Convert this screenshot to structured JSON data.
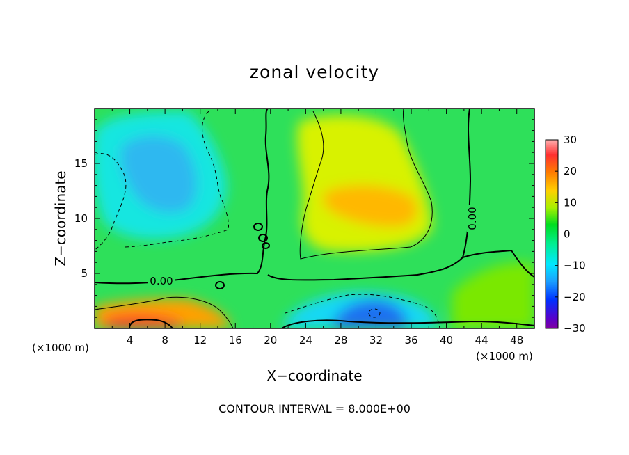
{
  "chart_data": {
    "type": "heatmap",
    "title": "zonal velocity",
    "xlabel": "X−coordinate",
    "ylabel": "Z−coordinate",
    "x_unit": "(×1000 m)",
    "z_unit": "(×1000 m)",
    "xlim": [
      0,
      50
    ],
    "ylim": [
      0,
      20
    ],
    "x_ticks": [
      4,
      8,
      12,
      16,
      20,
      24,
      28,
      32,
      36,
      40,
      44,
      48
    ],
    "y_ticks": [
      5,
      10,
      15
    ],
    "colorbar": {
      "range": [
        -30,
        30
      ],
      "ticks": [
        30,
        20,
        10,
        0,
        -10,
        -20,
        -30
      ],
      "tick_labels": [
        "30",
        "20",
        "10",
        "0",
        "−10",
        "−20",
        "−30"
      ]
    },
    "contour_labels": [
      "0.00",
      "0.00",
      "0.00"
    ],
    "contour_interval": "CONTOUR INTERVAL = 8.000E+00",
    "features": [
      {
        "name": "upper-left negative region",
        "x": 9,
        "z": 13,
        "value": -12
      },
      {
        "name": "upper-center positive jet",
        "x": 32,
        "z": 11.5,
        "value": 14
      },
      {
        "name": "near-surface positive region",
        "x": 7,
        "z": 0.8,
        "value": 22
      },
      {
        "name": "near-surface negative region",
        "x": 32,
        "z": 1.4,
        "value": -18
      },
      {
        "name": "right positive region",
        "x": 46,
        "z": 3,
        "value": 6
      }
    ]
  }
}
